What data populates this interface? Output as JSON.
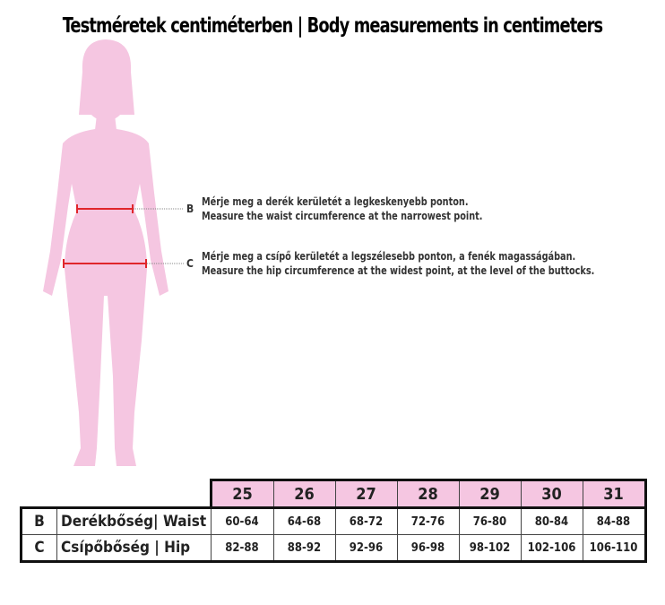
{
  "title": "Testméretek centiméterben | Body measurements in centimeters",
  "notes": {
    "B": {
      "letter": "B",
      "hu": "Mérje meg a derék kerületét a legkeskenyebb ponton.",
      "en": "Measure the waist circumference at the narrowest point."
    },
    "C": {
      "letter": "C",
      "hu": "Mérje meg a csípő kerületét a legszélesebb ponton, a fenék magasságában.",
      "en": "Measure the hip circumference at the widest point, at the level of the buttocks."
    }
  },
  "colors": {
    "silhouette": "#f5c6e1",
    "measure_line": "#e0262b",
    "header_bg": "#f5c6e1"
  },
  "table": {
    "sizes": [
      "25",
      "26",
      "27",
      "28",
      "29",
      "30",
      "31"
    ],
    "rows": [
      {
        "letter": "B",
        "label": "Derékbőség| Waist",
        "values": [
          "60-64",
          "64-68",
          "68-72",
          "72-76",
          "76-80",
          "80-84",
          "84-88"
        ]
      },
      {
        "letter": "C",
        "label": "Csípőbőség | Hip",
        "values": [
          "82-88",
          "88-92",
          "92-96",
          "96-98",
          "98-102",
          "102-106",
          "106-110"
        ]
      }
    ]
  }
}
